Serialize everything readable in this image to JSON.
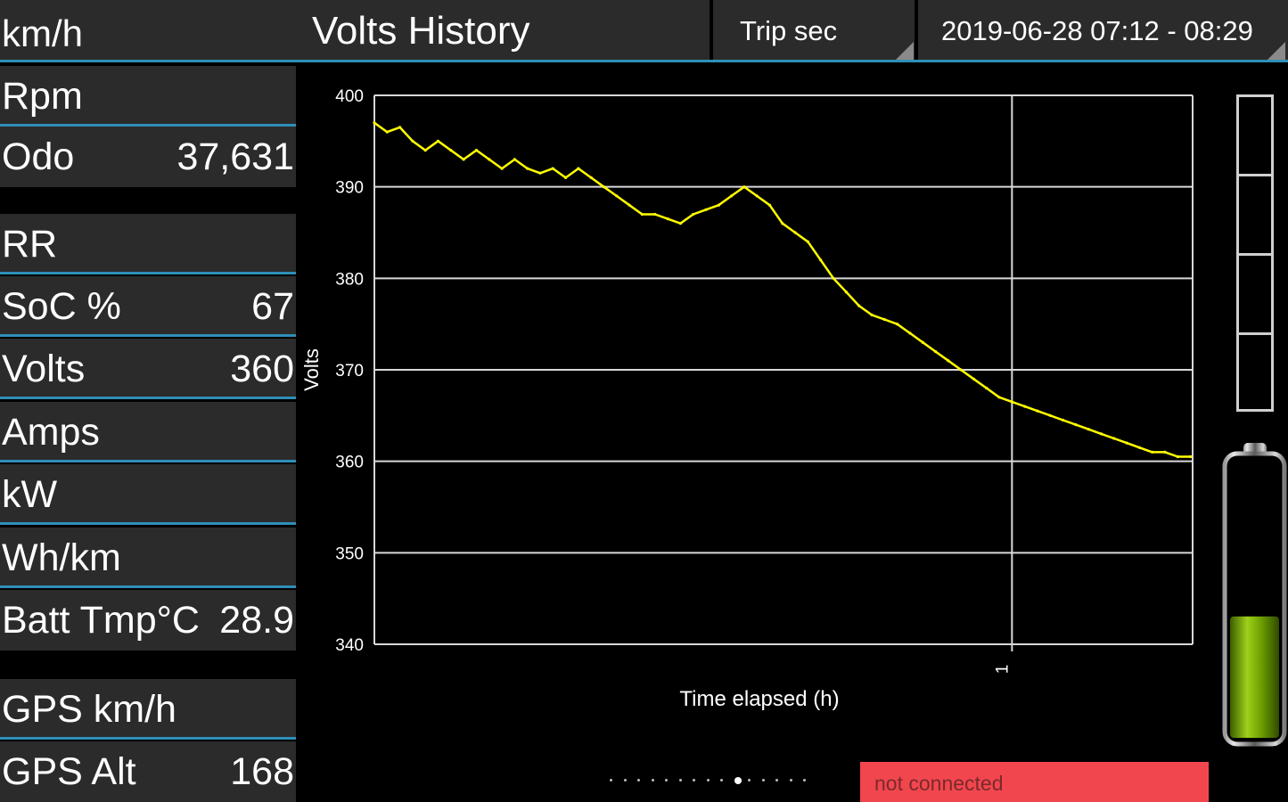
{
  "header": {
    "speed_label": "km/h",
    "title": "Volts History",
    "trip_select": "Trip sec",
    "date_range_select": "2019-06-28 07:12 - 08:29"
  },
  "left_panel": {
    "rows": [
      {
        "label": "Rpm",
        "value": ""
      },
      {
        "label": "Odo",
        "value": "37,631"
      },
      {
        "label": "RR",
        "value": ""
      },
      {
        "label": "SoC %",
        "value": "67"
      },
      {
        "label": "Volts",
        "value": "360"
      },
      {
        "label": "Amps",
        "value": ""
      },
      {
        "label": "kW",
        "value": ""
      },
      {
        "label": "Wh/km",
        "value": ""
      },
      {
        "label": "Batt Tmp°C",
        "value": "28.9"
      },
      {
        "label": "GPS km/h",
        "value": ""
      },
      {
        "label": "GPS Alt",
        "value": "168"
      }
    ]
  },
  "chart_data": {
    "type": "line",
    "ylabel": "Volts",
    "xlabel": "Time elapsed (h)",
    "ylim": [
      340,
      400
    ],
    "xlim": [
      0,
      1.2833
    ],
    "yticks": [
      "340",
      "350",
      "360",
      "370",
      "380",
      "390",
      "400"
    ],
    "xticks": [
      {
        "value": 1,
        "label": "1"
      }
    ],
    "grid": true,
    "line_color": "#ffff00",
    "series": [
      {
        "values": [
          [
            0.0,
            397
          ],
          [
            0.02,
            396
          ],
          [
            0.04,
            396.5
          ],
          [
            0.06,
            395
          ],
          [
            0.08,
            394
          ],
          [
            0.1,
            395
          ],
          [
            0.12,
            394
          ],
          [
            0.14,
            393
          ],
          [
            0.16,
            394
          ],
          [
            0.18,
            393
          ],
          [
            0.2,
            392
          ],
          [
            0.22,
            393
          ],
          [
            0.24,
            392
          ],
          [
            0.26,
            391.5
          ],
          [
            0.28,
            392
          ],
          [
            0.3,
            391
          ],
          [
            0.32,
            392
          ],
          [
            0.34,
            391
          ],
          [
            0.36,
            390
          ],
          [
            0.38,
            389
          ],
          [
            0.4,
            388
          ],
          [
            0.42,
            387
          ],
          [
            0.44,
            387
          ],
          [
            0.46,
            386.5
          ],
          [
            0.48,
            386
          ],
          [
            0.5,
            387
          ],
          [
            0.52,
            387.5
          ],
          [
            0.54,
            388
          ],
          [
            0.56,
            389
          ],
          [
            0.58,
            390
          ],
          [
            0.6,
            389
          ],
          [
            0.62,
            388
          ],
          [
            0.64,
            386
          ],
          [
            0.66,
            385
          ],
          [
            0.68,
            384
          ],
          [
            0.7,
            382
          ],
          [
            0.72,
            380
          ],
          [
            0.74,
            378.5
          ],
          [
            0.76,
            377
          ],
          [
            0.78,
            376
          ],
          [
            0.8,
            375.5
          ],
          [
            0.82,
            375
          ],
          [
            0.84,
            374
          ],
          [
            0.86,
            373
          ],
          [
            0.88,
            372
          ],
          [
            0.9,
            371
          ],
          [
            0.92,
            370
          ],
          [
            0.94,
            369
          ],
          [
            0.96,
            368
          ],
          [
            0.98,
            367
          ],
          [
            1.0,
            366.5
          ],
          [
            1.02,
            366
          ],
          [
            1.04,
            365.5
          ],
          [
            1.06,
            365
          ],
          [
            1.08,
            364.5
          ],
          [
            1.1,
            364
          ],
          [
            1.12,
            363.5
          ],
          [
            1.14,
            363
          ],
          [
            1.16,
            362.5
          ],
          [
            1.18,
            362
          ],
          [
            1.2,
            361.5
          ],
          [
            1.22,
            361
          ],
          [
            1.24,
            361
          ],
          [
            1.26,
            360.5
          ],
          [
            1.28,
            360.5
          ]
        ]
      }
    ]
  },
  "gauge": {
    "segments": 4,
    "level": 0
  },
  "battery": {
    "soc_percent": 67,
    "fill_color": "#7fba00"
  },
  "pager": {
    "total": 15,
    "active_index": 9
  },
  "status": {
    "text": "not connected",
    "color": "#f2464f"
  }
}
